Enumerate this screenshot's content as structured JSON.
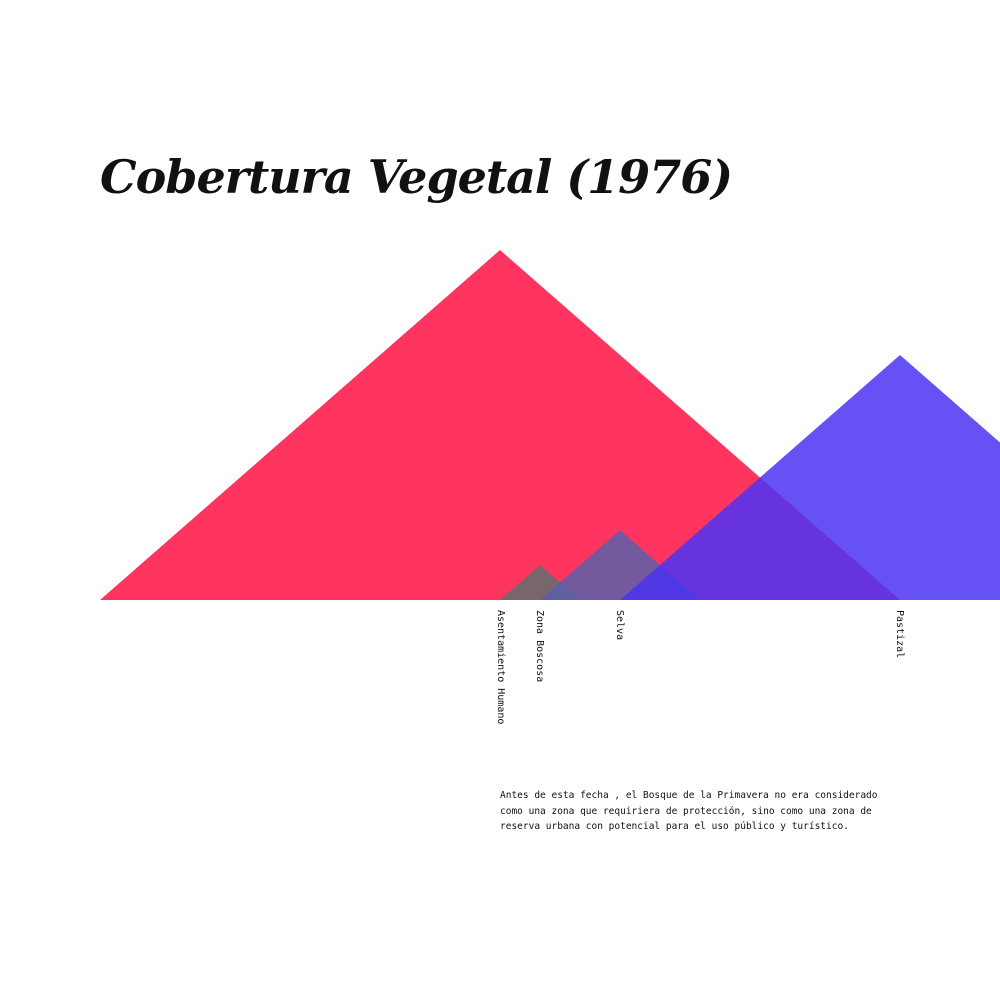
{
  "title": "Cobertura Vegetal (1976)",
  "note": "Antes de esta fecha , el Bosque de la Primavera no era considerado como una zona que requiriera de protección, sino como una zona de reserva urbana con potencial para el uso público y turístico.",
  "chart_data": {
    "type": "area",
    "title": "Cobertura Vegetal (1976)",
    "xlabel": "",
    "ylabel": "",
    "grid": false,
    "legend": "none",
    "categories": [
      "Asentamiento Humano",
      "Zona Boscosa",
      "Selva",
      "Pastizal"
    ],
    "values": [
      1.0,
      35.0,
      70.0,
      245.0
    ],
    "reference_value": 350.0,
    "colors": [
      "#5f8a6a",
      "#5f6e6e",
      "#5a5fa8",
      "#4b33f2"
    ],
    "background_color": "#ff3560"
  }
}
